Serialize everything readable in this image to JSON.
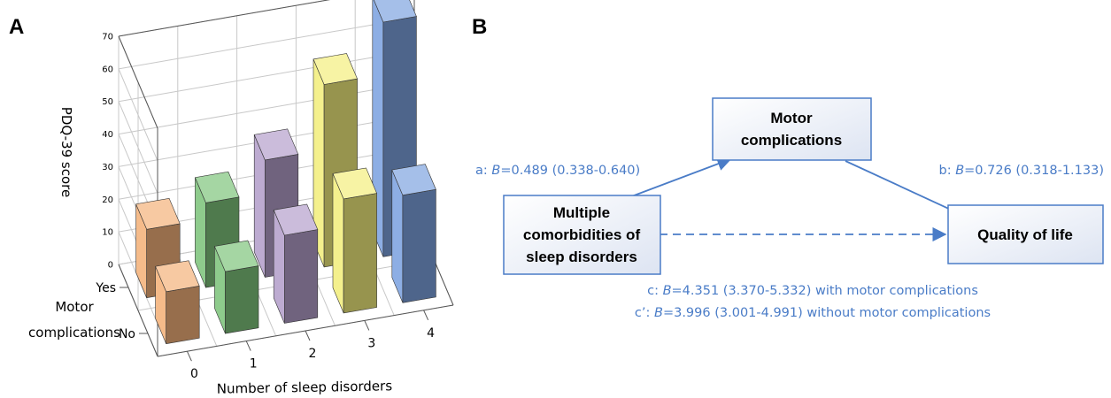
{
  "panels": {
    "a_letter": "A",
    "b_letter": "B"
  },
  "chart_data": {
    "type": "bar3d",
    "zlabel": "PDQ-39 score",
    "xlabel": "Number of sleep disorders",
    "ylabel_line1": "Motor",
    "ylabel_line2": "complications",
    "x_categories": [
      "0",
      "1",
      "2",
      "3",
      "4"
    ],
    "y_categories": [
      "No",
      "Yes"
    ],
    "zlim": [
      0,
      70
    ],
    "zticks": [
      "0",
      "10",
      "20",
      "30",
      "40",
      "50",
      "60",
      "70"
    ],
    "grid": true,
    "series": [
      {
        "name": "No",
        "values": [
          16,
          19,
          27,
          35,
          33
        ]
      },
      {
        "name": "Yes",
        "values": [
          21,
          26,
          36,
          56,
          72
        ]
      }
    ],
    "colors": [
      "#f4b27a",
      "#7fc47c",
      "#b49fcb",
      "#f3ee7d",
      "#7ea3e0"
    ]
  },
  "mediation": {
    "mediator": [
      "Motor",
      "complications"
    ],
    "independent": [
      "Multiple",
      "comorbidities of",
      "sleep disorders"
    ],
    "dependent": [
      "Quality of life"
    ],
    "path_a": {
      "prefix": "a: ",
      "var": "B",
      "rest": "=0.489 (0.338-0.640)"
    },
    "path_b": {
      "prefix": "b: ",
      "var": "B",
      "rest": "=0.726 (0.318-1.133)"
    },
    "path_c": {
      "prefix": "c: ",
      "var": "B",
      "rest": "=4.351 (3.370-5.332) with motor complications"
    },
    "path_c_prime": {
      "prefix": "c’: ",
      "var": "B",
      "rest": "=3.996 (3.001-4.991) without motor complications"
    },
    "accent_color": "#4a7cc7"
  }
}
